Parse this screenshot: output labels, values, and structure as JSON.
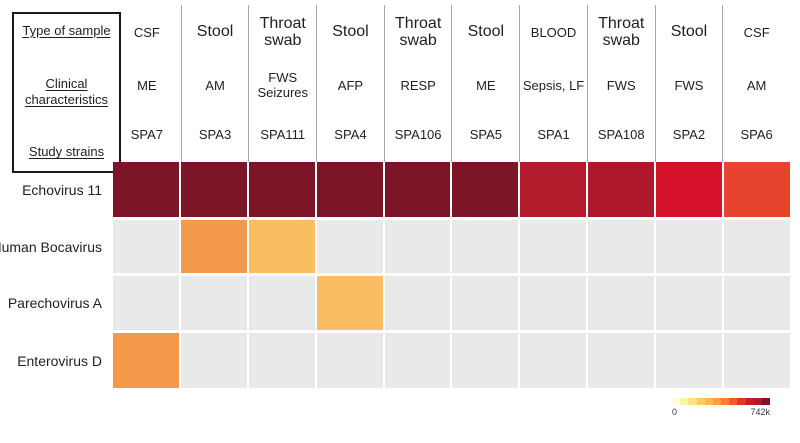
{
  "figure": {
    "header_box": {
      "labels": [
        "Type of sample",
        "Clinical characteristics",
        "Study strains"
      ]
    }
  },
  "chart_data": {
    "type": "heatmap",
    "title": "",
    "columns": [
      {
        "sample": "CSF",
        "sample_style": "small",
        "clinical": "ME",
        "strain": "SPA7"
      },
      {
        "sample": "Stool",
        "sample_style": "large",
        "clinical": "AM",
        "strain": "SPA3"
      },
      {
        "sample": "Throat swab",
        "sample_style": "large",
        "clinical": "FWS Seizures",
        "strain": "SPA111"
      },
      {
        "sample": "Stool",
        "sample_style": "large",
        "clinical": "AFP",
        "strain": "SPA4"
      },
      {
        "sample": "Throat swab",
        "sample_style": "large",
        "clinical": "RESP",
        "strain": "SPA106"
      },
      {
        "sample": "Stool",
        "sample_style": "large",
        "clinical": "ME",
        "strain": "SPA5"
      },
      {
        "sample": "BLOOD",
        "sample_style": "small",
        "clinical": "Sepsis, LF",
        "strain": "SPA1"
      },
      {
        "sample": "Throat swab",
        "sample_style": "large",
        "clinical": "FWS",
        "strain": "SPA108"
      },
      {
        "sample": "Stool",
        "sample_style": "large",
        "clinical": "FWS",
        "strain": "SPA2"
      },
      {
        "sample": "CSF",
        "sample_style": "small",
        "clinical": "AM",
        "strain": "SPA6"
      }
    ],
    "rows": [
      {
        "label": "Echovirus 11",
        "cells": [
          {
            "c": "#7C1528",
            "v": 700000
          },
          {
            "c": "#7C1528",
            "v": 700000
          },
          {
            "c": "#7C1528",
            "v": 700000
          },
          {
            "c": "#7C1528",
            "v": 700000
          },
          {
            "c": "#7C1528",
            "v": 700000
          },
          {
            "c": "#7C1528",
            "v": 700000
          },
          {
            "c": "#B21B2B",
            "v": 560000
          },
          {
            "c": "#AF182C",
            "v": 545000
          },
          {
            "c": "#D6122B",
            "v": 480000
          },
          {
            "c": "#E8432F",
            "v": 415000
          }
        ]
      },
      {
        "label": "Human Bocavirus",
        "cells": [
          {
            "c": "#EAE9E9",
            "v": 0
          },
          {
            "c": "#F2994A",
            "v": 250000
          },
          {
            "c": "#FABD62",
            "v": 160000
          },
          {
            "c": "#EAE9E9",
            "v": 0
          },
          {
            "c": "#EAE9E9",
            "v": 0
          },
          {
            "c": "#EAE9E9",
            "v": 0
          },
          {
            "c": "#EAE9E9",
            "v": 0
          },
          {
            "c": "#EAE9E9",
            "v": 0
          },
          {
            "c": "#EAE9E9",
            "v": 0
          },
          {
            "c": "#EAE9E9",
            "v": 0
          }
        ]
      },
      {
        "label": "Parechovirus A",
        "cells": [
          {
            "c": "#EAE9E9",
            "v": 0
          },
          {
            "c": "#EAE9E9",
            "v": 0
          },
          {
            "c": "#EAE9E9",
            "v": 0
          },
          {
            "c": "#FABD62",
            "v": 160000
          },
          {
            "c": "#EAE9E9",
            "v": 0
          },
          {
            "c": "#EAE9E9",
            "v": 0
          },
          {
            "c": "#EAE9E9",
            "v": 0
          },
          {
            "c": "#EAE9E9",
            "v": 0
          },
          {
            "c": "#EAE9E9",
            "v": 0
          },
          {
            "c": "#EAE9E9",
            "v": 0
          }
        ]
      },
      {
        "label": "Enterovirus D",
        "cells": [
          {
            "c": "#F2994A",
            "v": 250000
          },
          {
            "c": "#EAE9E9",
            "v": 0
          },
          {
            "c": "#EAE9E9",
            "v": 0
          },
          {
            "c": "#EAE9E9",
            "v": 0
          },
          {
            "c": "#EAE9E9",
            "v": 0
          },
          {
            "c": "#EAE9E9",
            "v": 0
          },
          {
            "c": "#EAE9E9",
            "v": 0
          },
          {
            "c": "#EAE9E9",
            "v": 0
          },
          {
            "c": "#EAE9E9",
            "v": 0
          },
          {
            "c": "#EAE9E9",
            "v": 0
          }
        ]
      }
    ],
    "colorbar": {
      "min_label": "0",
      "max_label": "742k",
      "min_value": 0,
      "max_value": 742000,
      "colors": [
        "#FFFBDC",
        "#FFF2AC",
        "#FEE186",
        "#FECC5C",
        "#FDB54E",
        "#FD9B41",
        "#FA7E35",
        "#F15A2C",
        "#E23526",
        "#CF1C24",
        "#AF1A2B",
        "#7C1528"
      ]
    },
    "empty_color": "#EAE9E9",
    "layout": {
      "legend_position": "bottom-right",
      "grid": "white-gaps"
    }
  }
}
